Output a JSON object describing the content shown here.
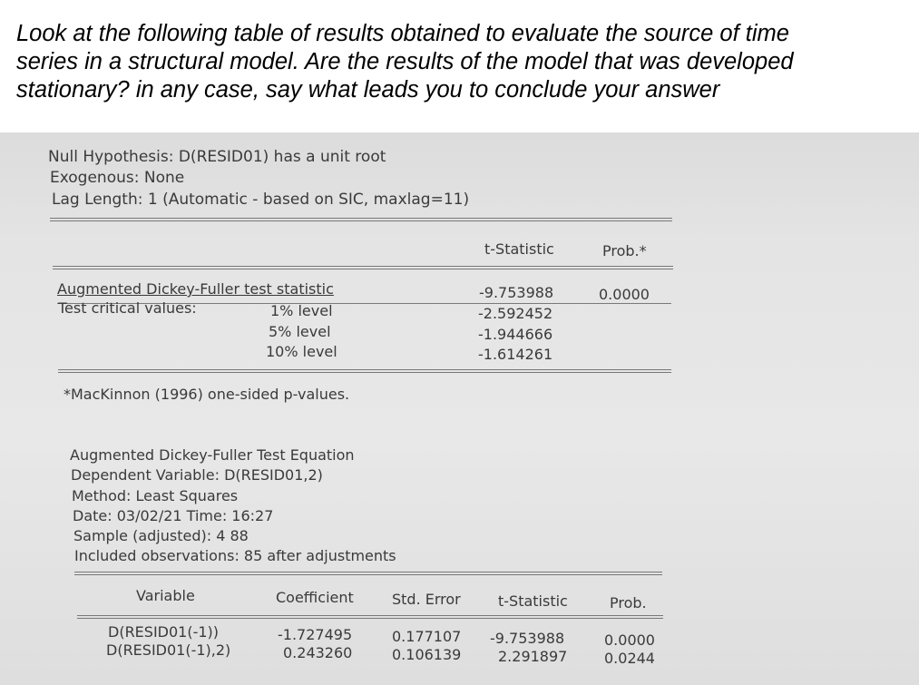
{
  "question": {
    "lines": [
      "Look at the following table of results obtained to evaluate the source of time",
      "series in a structural model. Are the results of the model that was developed",
      "stationary? in any case, say what leads you to conclude your answer"
    ]
  },
  "test_header": {
    "null_hypothesis": "Null Hypothesis: D(RESID01) has a unit root",
    "exogenous": "Exogenous: None",
    "lag_length": "Lag Length: 1 (Automatic - based on SIC, maxlag=11)"
  },
  "adf_table": {
    "col_tstat": "t-Statistic",
    "col_prob": "Prob.*",
    "adf_label": "Augmented Dickey-Fuller test statistic",
    "adf_tstat": "-9.753988",
    "adf_prob": "0.0000",
    "critical_label": "Test critical values:",
    "levels": [
      {
        "label": "1% level",
        "value": "-2.592452"
      },
      {
        "label": "5% level",
        "value": "-1.944666"
      },
      {
        "label": "10% level",
        "value": "-1.614261"
      }
    ],
    "footnote": "*MacKinnon (1996) one-sided p-values."
  },
  "equation_header": {
    "title": "Augmented Dickey-Fuller Test Equation",
    "dependent": "Dependent Variable: D(RESID01,2)",
    "method": "Method: Least Squares",
    "date": "Date: 03/02/21   Time: 16:27",
    "sample": "Sample (adjusted): 4 88",
    "observations": "Included observations: 85 after adjustments"
  },
  "coef_table": {
    "headers": [
      "Variable",
      "Coefficient",
      "Std. Error",
      "t-Statistic",
      "Prob."
    ],
    "rows": [
      [
        "D(RESID01(-1))",
        "-1.727495",
        "0.177107",
        "-9.753988",
        "0.0000"
      ],
      [
        "D(RESID01(-1),2)",
        "0.243260",
        "0.106139",
        "2.291897",
        "0.0244"
      ]
    ]
  }
}
